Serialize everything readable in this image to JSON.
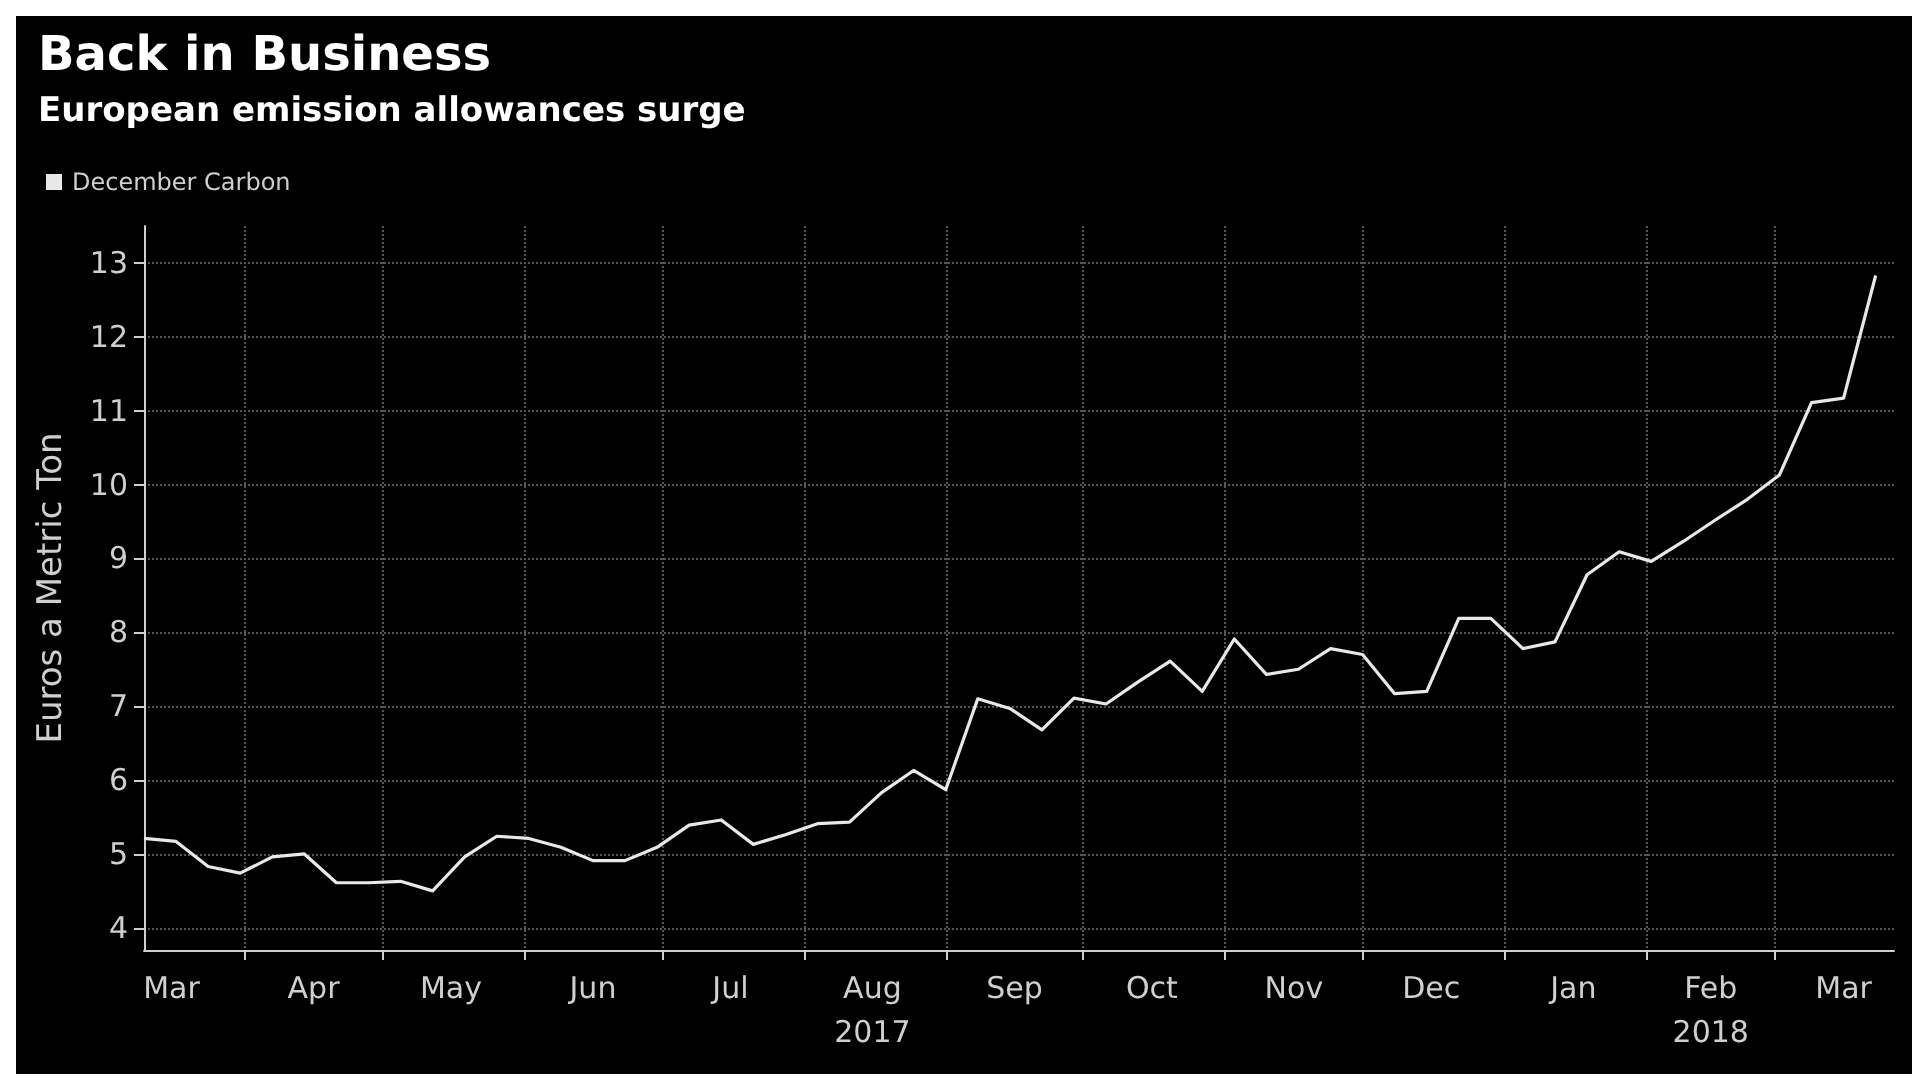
{
  "chart_data": {
    "type": "line",
    "title": "Back in Business",
    "subtitle": "European emission allowances surge",
    "ylabel": "Euros a Metric Ton",
    "x": [
      "2017-03-10",
      "2017-03-17",
      "2017-03-24",
      "2017-03-31",
      "2017-04-07",
      "2017-04-14",
      "2017-04-21",
      "2017-04-28",
      "2017-05-05",
      "2017-05-12",
      "2017-05-19",
      "2017-05-26",
      "2017-06-02",
      "2017-06-09",
      "2017-06-16",
      "2017-06-23",
      "2017-06-30",
      "2017-07-07",
      "2017-07-14",
      "2017-07-21",
      "2017-07-28",
      "2017-08-04",
      "2017-08-11",
      "2017-08-18",
      "2017-08-25",
      "2017-09-01",
      "2017-09-08",
      "2017-09-15",
      "2017-09-22",
      "2017-09-29",
      "2017-10-06",
      "2017-10-13",
      "2017-10-20",
      "2017-10-27",
      "2017-11-03",
      "2017-11-10",
      "2017-11-17",
      "2017-11-24",
      "2017-12-01",
      "2017-12-08",
      "2017-12-15",
      "2017-12-22",
      "2017-12-29",
      "2018-01-05",
      "2018-01-12",
      "2018-01-19",
      "2018-01-26",
      "2018-02-02",
      "2018-02-09",
      "2018-02-16",
      "2018-02-23",
      "2018-03-02",
      "2018-03-09",
      "2018-03-16",
      "2018-03-23"
    ],
    "series": [
      {
        "name": "December Carbon",
        "color": "#e8e8e8",
        "values": [
          5.21,
          5.17,
          4.83,
          4.74,
          4.96,
          5.0,
          4.61,
          4.61,
          4.63,
          4.5,
          4.96,
          5.24,
          5.21,
          5.09,
          4.91,
          4.91,
          5.09,
          5.39,
          5.46,
          5.13,
          5.26,
          5.41,
          5.43,
          5.83,
          6.13,
          5.87,
          7.1,
          6.97,
          6.68,
          7.11,
          7.03,
          7.33,
          7.61,
          7.2,
          7.91,
          7.43,
          7.5,
          7.78,
          7.7,
          7.17,
          7.2,
          8.19,
          8.19,
          7.78,
          7.87,
          8.78,
          9.09,
          8.96,
          9.23,
          9.52,
          9.8,
          10.13,
          11.11,
          11.17,
          12.83
        ]
      }
    ],
    "xlim": [
      "2017-03-10",
      "2018-03-27"
    ],
    "xticks": [
      {
        "value": "2017-03-16",
        "label": "Mar"
      },
      {
        "value": "2017-04-01",
        "label": null
      },
      {
        "value": "2017-04-16",
        "label": "Apr"
      },
      {
        "value": "2017-05-01",
        "label": null
      },
      {
        "value": "2017-05-16",
        "label": "May"
      },
      {
        "value": "2017-06-01",
        "label": null
      },
      {
        "value": "2017-06-16",
        "label": "Jun"
      },
      {
        "value": "2017-07-01",
        "label": null
      },
      {
        "value": "2017-07-16",
        "label": "Jul"
      },
      {
        "value": "2017-08-01",
        "label": null
      },
      {
        "value": "2017-08-16",
        "label": "Aug\n2017"
      },
      {
        "value": "2017-09-01",
        "label": null
      },
      {
        "value": "2017-09-16",
        "label": "Sep"
      },
      {
        "value": "2017-10-01",
        "label": null
      },
      {
        "value": "2017-10-16",
        "label": "Oct"
      },
      {
        "value": "2017-11-01",
        "label": null
      },
      {
        "value": "2017-11-16",
        "label": "Nov"
      },
      {
        "value": "2017-12-01",
        "label": null
      },
      {
        "value": "2017-12-16",
        "label": "Dec"
      },
      {
        "value": "2018-01-01",
        "label": null
      },
      {
        "value": "2018-01-16",
        "label": "Jan"
      },
      {
        "value": "2018-02-01",
        "label": null
      },
      {
        "value": "2018-02-15",
        "label": "Feb\n2018"
      },
      {
        "value": "2018-03-01",
        "label": null
      },
      {
        "value": "2018-03-16",
        "label": "Mar"
      }
    ],
    "ylim": [
      3.7,
      13.5
    ],
    "yticks": [
      4,
      5,
      6,
      7,
      8,
      9,
      10,
      11,
      12,
      13
    ],
    "grid": true,
    "legend": "top left",
    "marker": "none",
    "line_style": "solid"
  }
}
